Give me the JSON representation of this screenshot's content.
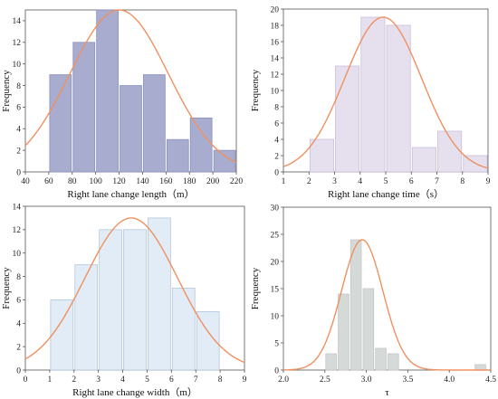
{
  "chart_data": [
    {
      "type": "bar",
      "xlabel": "Right lane change length（m）",
      "ylabel": "Frequency",
      "xlim": [
        40,
        220
      ],
      "ylim": [
        0,
        15
      ],
      "xticks": [
        "40",
        "60",
        "80",
        "100",
        "120",
        "140",
        "160",
        "180",
        "200",
        "220"
      ],
      "yticks": [
        "0",
        "2",
        "4",
        "6",
        "8",
        "10",
        "12",
        "14"
      ],
      "bin_edges": [
        60,
        80,
        100,
        120,
        140,
        160,
        180,
        200,
        220
      ],
      "values": [
        9,
        12,
        15,
        8,
        9,
        3,
        5,
        2
      ],
      "fit": {
        "type": "normal",
        "mean": 120,
        "sd": 42,
        "peak": 15
      },
      "bar_color": "#a8adcf",
      "bar_edge_color": "#8c91b8"
    },
    {
      "type": "bar",
      "xlabel": "Right lane change time（s）",
      "ylabel": "Frequency",
      "xlim": [
        1,
        9
      ],
      "ylim": [
        0,
        20
      ],
      "xticks": [
        "1",
        "2",
        "3",
        "4",
        "5",
        "6",
        "7",
        "8",
        "9"
      ],
      "yticks": [
        "0",
        "2",
        "4",
        "6",
        "8",
        "10",
        "12",
        "14",
        "16",
        "18",
        "20"
      ],
      "bin_edges": [
        2,
        3,
        4,
        5,
        6,
        7,
        8,
        9
      ],
      "values": [
        4,
        13,
        19,
        18,
        3,
        5,
        2
      ],
      "fit": {
        "type": "normal",
        "mean": 4.9,
        "sd": 1.5,
        "peak": 19
      },
      "bar_color": "#e6e0ee",
      "bar_edge_color": "#c9bfd9"
    },
    {
      "type": "bar",
      "xlabel": "Right lane change width（m）",
      "ylabel": "Frequency",
      "xlim": [
        0,
        9
      ],
      "ylim": [
        0,
        14
      ],
      "xticks": [
        "0",
        "1",
        "2",
        "3",
        "4",
        "5",
        "6",
        "7",
        "8",
        "9"
      ],
      "yticks": [
        "0",
        "2",
        "4",
        "6",
        "8",
        "10",
        "12",
        "14"
      ],
      "bin_edges": [
        1,
        2,
        3,
        4,
        5,
        6,
        7,
        8
      ],
      "values": [
        6,
        9,
        12,
        12,
        13,
        7,
        5
      ],
      "fit": {
        "type": "normal",
        "mean": 4.35,
        "sd": 1.9,
        "peak": 13
      },
      "bar_color": "#e2ecf6",
      "bar_edge_color": "#b3c6dc"
    },
    {
      "type": "bar",
      "xlabel": "τ",
      "ylabel": "Frequency",
      "xlim": [
        2.0,
        4.5
      ],
      "ylim": [
        0,
        30
      ],
      "xticks": [
        "2.0",
        "2.5",
        "3.0",
        "3.5",
        "4.0",
        "4.5"
      ],
      "yticks": [
        "0",
        "5",
        "10",
        "15",
        "20",
        "25",
        "30"
      ],
      "bin_edges": [
        2.5,
        2.65,
        2.8,
        2.95,
        3.1,
        3.25,
        3.4,
        3.55,
        3.7,
        3.85,
        4.0,
        4.15,
        4.3,
        4.45
      ],
      "values": [
        3,
        14,
        24,
        15,
        4,
        3,
        0,
        0,
        0,
        0,
        0,
        0,
        1
      ],
      "fit": {
        "type": "normal",
        "mean": 2.95,
        "sd": 0.25,
        "peak": 24
      },
      "bar_color": "#d5dad9",
      "bar_edge_color": "#c2c8c7"
    }
  ]
}
